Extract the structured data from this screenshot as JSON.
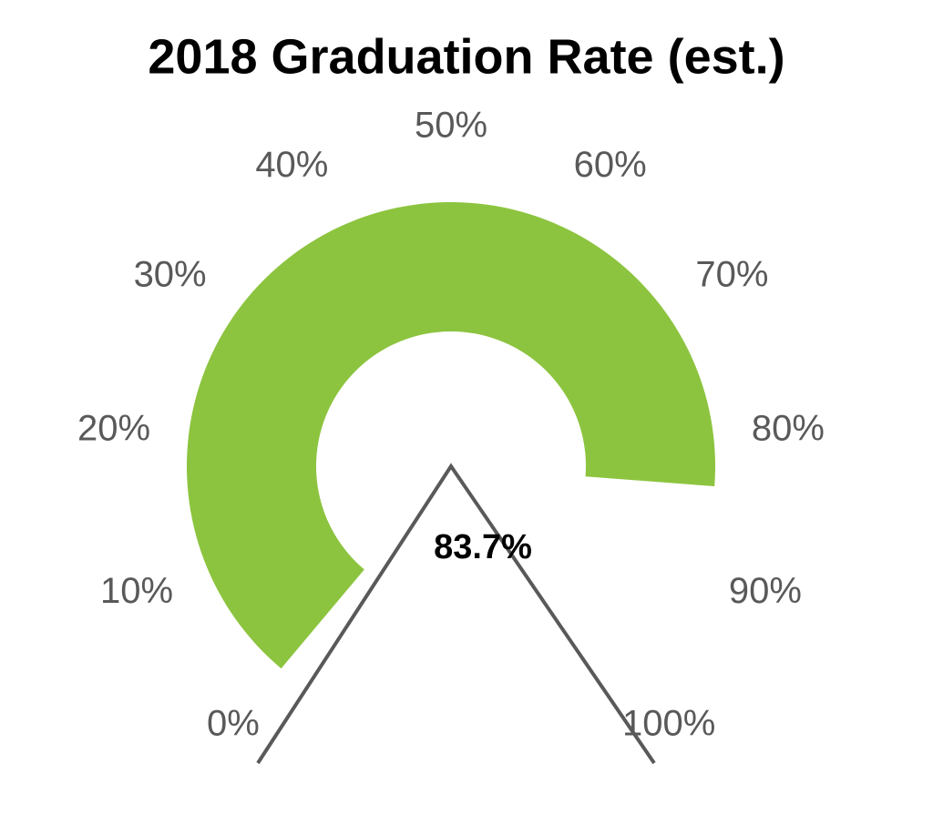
{
  "chart_data": {
    "type": "gauge",
    "title": "2018 Graduation Rate (est.)",
    "value": 83.7,
    "value_labels": [
      "83.7%"
    ],
    "color": "#8cc43f",
    "lim": [
      0,
      100
    ],
    "ticks": [
      {
        "value": 0,
        "label": "0%"
      },
      {
        "value": 10,
        "label": "10%"
      },
      {
        "value": 20,
        "label": "20%"
      },
      {
        "value": 30,
        "label": "30%"
      },
      {
        "value": 40,
        "label": "40%"
      },
      {
        "value": 50,
        "label": "50%"
      },
      {
        "value": 60,
        "label": "60%"
      },
      {
        "value": 70,
        "label": "70%"
      },
      {
        "value": 80,
        "label": "80%"
      },
      {
        "value": 90,
        "label": "90%"
      },
      {
        "value": 100,
        "label": "100%"
      }
    ]
  }
}
